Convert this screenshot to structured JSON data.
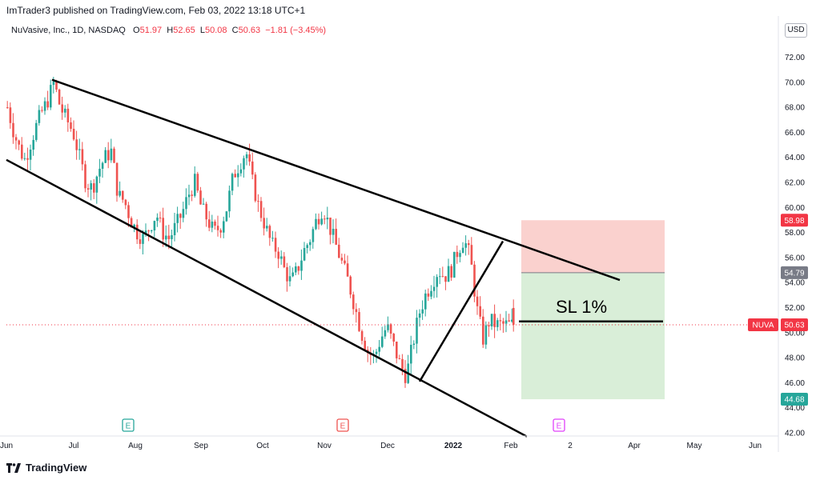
{
  "header": {
    "publisher_line": "ImTrader3 published on TradingView.com, Feb 03, 2022 13:18 UTC+1"
  },
  "legend": {
    "symbol": "NuVasive, Inc., 1D, NASDAQ",
    "open_label": "O",
    "open": "51.97",
    "high_label": "H",
    "high": "52.65",
    "low_label": "L",
    "low": "50.08",
    "close_label": "C",
    "close": "50.63",
    "change": "−1.81 (−3.45%)"
  },
  "currency": "USD",
  "footer": {
    "brand": "TradingView"
  },
  "colors": {
    "up": "#26a69a",
    "down": "#ef5350",
    "stop_zone": "#f9c9c6",
    "target_zone": "#d5ecd4",
    "price_tag": "#f23645",
    "entry_tag": "#787b86",
    "target_tag": "#26a69a"
  },
  "chart_data": {
    "type": "line",
    "title": "NuVasive, Inc., 1D, NASDAQ",
    "xlabel": "",
    "ylabel": "",
    "ylim": [
      41.5,
      73.5
    ],
    "grid": false,
    "x_ticks": [
      "Jun",
      "Jul",
      "Aug",
      "Sep",
      "Oct",
      "Nov",
      "Dec",
      "2022",
      "Feb",
      "2",
      "Apr",
      "May",
      "Jun"
    ],
    "y_ticks": [
      "72.00",
      "70.00",
      "68.00",
      "66.00",
      "64.00",
      "62.00",
      "60.00",
      "58.00",
      "56.00",
      "54.00",
      "52.00",
      "50.00",
      "48.00",
      "46.00",
      "44.00",
      "42.00"
    ],
    "y_tick_values": [
      72,
      70,
      68,
      66,
      64,
      62,
      60,
      58,
      56,
      54,
      52,
      50,
      48,
      46,
      44,
      42
    ],
    "last_price": {
      "symbol": "NUVA",
      "value": 50.63,
      "label": "50.63"
    },
    "price_series_approx": [
      [
        0,
        68.0
      ],
      [
        8,
        66.0
      ],
      [
        16,
        64.5
      ],
      [
        22,
        63.8
      ],
      [
        28,
        65.0
      ],
      [
        36,
        66.5
      ],
      [
        42,
        67.5
      ],
      [
        50,
        68.5
      ],
      [
        58,
        70.0
      ],
      [
        66,
        68.0
      ],
      [
        74,
        67.0
      ],
      [
        82,
        66.0
      ],
      [
        90,
        64.0
      ],
      [
        98,
        62.0
      ],
      [
        106,
        61.5
      ],
      [
        114,
        63.0
      ],
      [
        122,
        64.0
      ],
      [
        130,
        64.5
      ],
      [
        138,
        61.0
      ],
      [
        146,
        60.5
      ],
      [
        154,
        59.0
      ],
      [
        162,
        58.0
      ],
      [
        170,
        57.5
      ],
      [
        178,
        58.5
      ],
      [
        186,
        59.5
      ],
      [
        194,
        58.0
      ],
      [
        202,
        57.5
      ],
      [
        210,
        58.5
      ],
      [
        218,
        59.5
      ],
      [
        226,
        61.0
      ],
      [
        234,
        62.0
      ],
      [
        242,
        60.0
      ],
      [
        250,
        59.0
      ],
      [
        258,
        58.0
      ],
      [
        266,
        58.5
      ],
      [
        274,
        60.0
      ],
      [
        282,
        62.5
      ],
      [
        290,
        63.5
      ],
      [
        298,
        64.5
      ],
      [
        306,
        62.0
      ],
      [
        314,
        60.0
      ],
      [
        322,
        58.5
      ],
      [
        330,
        57.0
      ],
      [
        338,
        56.5
      ],
      [
        346,
        55.0
      ],
      [
        354,
        54.0
      ],
      [
        362,
        55.0
      ],
      [
        370,
        56.5
      ],
      [
        378,
        57.5
      ],
      [
        386,
        59.0
      ],
      [
        394,
        60.0
      ],
      [
        402,
        58.5
      ],
      [
        410,
        57.0
      ],
      [
        418,
        55.5
      ],
      [
        426,
        54.0
      ],
      [
        434,
        52.0
      ],
      [
        442,
        50.0
      ],
      [
        450,
        48.5
      ],
      [
        458,
        48.0
      ],
      [
        466,
        49.5
      ],
      [
        474,
        50.5
      ],
      [
        482,
        49.0
      ],
      [
        490,
        47.5
      ],
      [
        498,
        46.5
      ],
      [
        506,
        49.0
      ],
      [
        514,
        51.5
      ],
      [
        522,
        53.0
      ],
      [
        530,
        54.0
      ],
      [
        538,
        55.0
      ],
      [
        546,
        54.5
      ],
      [
        554,
        55.0
      ],
      [
        562,
        56.5
      ],
      [
        570,
        57.5
      ],
      [
        578,
        56.0
      ],
      [
        586,
        52.0
      ],
      [
        594,
        49.5
      ],
      [
        602,
        51.0
      ],
      [
        610,
        50.63
      ]
    ],
    "trendlines": [
      {
        "name": "channel-upper",
        "from": [
          57,
          70.2
        ],
        "to": [
          766,
          54.2
        ]
      },
      {
        "name": "channel-lower",
        "from": [
          0,
          63.8
        ],
        "to": [
          650,
          41.7
        ]
      },
      {
        "name": "rising-support",
        "from": [
          516,
          46.1
        ],
        "to": [
          620,
          57.3
        ]
      },
      {
        "name": "sl-level",
        "from": [
          640,
          50.9
        ],
        "to": [
          820,
          50.9
        ]
      }
    ],
    "position": {
      "stop": {
        "value": 58.98,
        "label": "58.98"
      },
      "entry": {
        "value": 54.79,
        "label": "54.79"
      },
      "target": {
        "value": 44.68,
        "label": "44.68"
      },
      "annotation": "SL 1%"
    },
    "earnings_markers": [
      {
        "label": "E",
        "style": "up"
      },
      {
        "label": "E",
        "style": "down"
      },
      {
        "label": "E",
        "style": "future"
      }
    ]
  }
}
